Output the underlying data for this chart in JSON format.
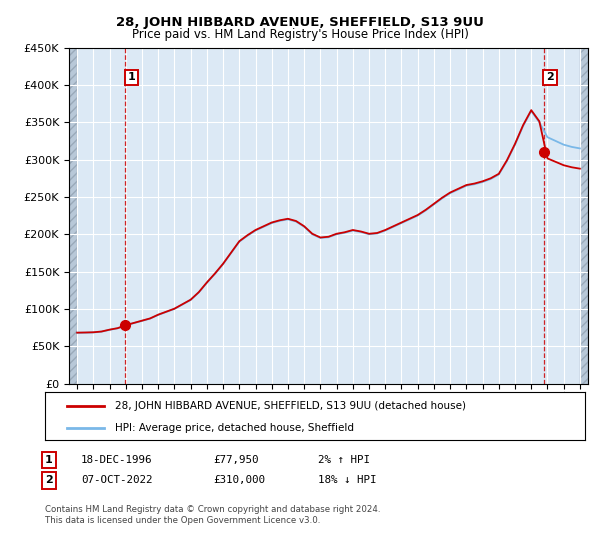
{
  "title": "28, JOHN HIBBARD AVENUE, SHEFFIELD, S13 9UU",
  "subtitle": "Price paid vs. HM Land Registry's House Price Index (HPI)",
  "legend_line1": "28, JOHN HIBBARD AVENUE, SHEFFIELD, S13 9UU (detached house)",
  "legend_line2": "HPI: Average price, detached house, Sheffield",
  "annotation1_label": "1",
  "annotation1_date": "18-DEC-1996",
  "annotation1_price": "£77,950",
  "annotation1_hpi": "2% ↑ HPI",
  "annotation2_label": "2",
  "annotation2_date": "07-OCT-2022",
  "annotation2_price": "£310,000",
  "annotation2_hpi": "18% ↓ HPI",
  "footer": "Contains HM Land Registry data © Crown copyright and database right 2024.\nThis data is licensed under the Open Government Licence v3.0.",
  "ylim": [
    0,
    450000
  ],
  "yticks": [
    0,
    50000,
    100000,
    150000,
    200000,
    250000,
    300000,
    350000,
    400000,
    450000
  ],
  "sale1_year": 1996.96,
  "sale1_price": 77950,
  "sale2_year": 2022.77,
  "sale2_price": 310000,
  "hpi_color": "#7ab8e8",
  "sale_color": "#cc0000",
  "bg_color": "#dce9f5",
  "hatch_color": "#b8c8d8",
  "grid_color": "#ffffff",
  "xlim_left": 1993.5,
  "xlim_right": 2025.5,
  "hpi_years": [
    1994,
    1994.5,
    1995,
    1995.5,
    1996,
    1996.5,
    1997,
    1997.5,
    1998,
    1998.5,
    1999,
    1999.5,
    2000,
    2000.5,
    2001,
    2001.5,
    2002,
    2002.5,
    2003,
    2003.5,
    2004,
    2004.5,
    2005,
    2005.5,
    2006,
    2006.5,
    2007,
    2007.5,
    2008,
    2008.5,
    2009,
    2009.5,
    2010,
    2010.5,
    2011,
    2011.5,
    2012,
    2012.5,
    2013,
    2013.5,
    2014,
    2014.5,
    2015,
    2015.5,
    2016,
    2016.5,
    2017,
    2017.5,
    2018,
    2018.5,
    2019,
    2019.5,
    2020,
    2020.5,
    2021,
    2021.5,
    2022,
    2022.5,
    2023,
    2023.5,
    2024,
    2024.5,
    2025
  ],
  "hpi_vals": [
    68000,
    68200,
    68500,
    69500,
    72000,
    74000,
    78000,
    81000,
    84000,
    87000,
    92000,
    96000,
    100000,
    106000,
    112000,
    122000,
    135000,
    147000,
    160000,
    175000,
    190000,
    198000,
    205000,
    210000,
    215000,
    218000,
    220000,
    217000,
    210000,
    200000,
    195000,
    196000,
    200000,
    202000,
    205000,
    203000,
    200000,
    201000,
    205000,
    210000,
    215000,
    220000,
    225000,
    232000,
    240000,
    248000,
    255000,
    260000,
    265000,
    267000,
    270000,
    274000,
    280000,
    298000,
    320000,
    345000,
    365000,
    350000,
    330000,
    325000,
    320000,
    317000,
    315000
  ]
}
